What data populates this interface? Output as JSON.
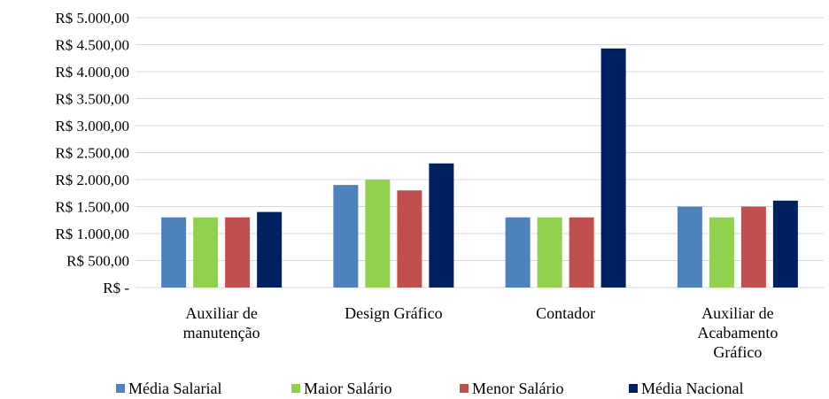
{
  "chart_data": {
    "type": "bar",
    "title": "",
    "xlabel": "",
    "ylabel": "",
    "ylim": [
      0,
      5000
    ],
    "y_ticks": [
      {
        "value": 5000,
        "label": "R$ 5.000,00"
      },
      {
        "value": 4500,
        "label": "R$ 4.500,00"
      },
      {
        "value": 4000,
        "label": "R$ 4.000,00"
      },
      {
        "value": 3500,
        "label": "R$ 3.500,00"
      },
      {
        "value": 3000,
        "label": "R$ 3.000,00"
      },
      {
        "value": 2500,
        "label": "R$ 2.500,00"
      },
      {
        "value": 2000,
        "label": "R$ 2.000,00"
      },
      {
        "value": 1500,
        "label": "R$ 1.500,00"
      },
      {
        "value": 1000,
        "label": "R$ 1.000,00"
      },
      {
        "value": 500,
        "label": "R$ 500,00"
      },
      {
        "value": 0,
        "label": "R$ -"
      }
    ],
    "grid": true,
    "legend_position": "bottom",
    "categories": [
      [
        "Auxiliar de",
        "manutenção"
      ],
      [
        "Design Gráfico"
      ],
      [
        "Contador"
      ],
      [
        "Auxiliar de",
        "Acabamento",
        "Gráfico"
      ]
    ],
    "series": [
      {
        "name": "Média Salarial",
        "color": "#4f81bd",
        "values": [
          1300,
          1900,
          1300,
          1500
        ]
      },
      {
        "name": "Maior Salário",
        "color": "#92d050",
        "values": [
          1300,
          2000,
          1300,
          1300
        ]
      },
      {
        "name": "Menor Salário",
        "color": "#c0504d",
        "values": [
          1300,
          1800,
          1300,
          1500
        ]
      },
      {
        "name": "Média Nacional",
        "color": "#002060",
        "values": [
          1400,
          2300,
          4430,
          1610
        ]
      }
    ]
  }
}
